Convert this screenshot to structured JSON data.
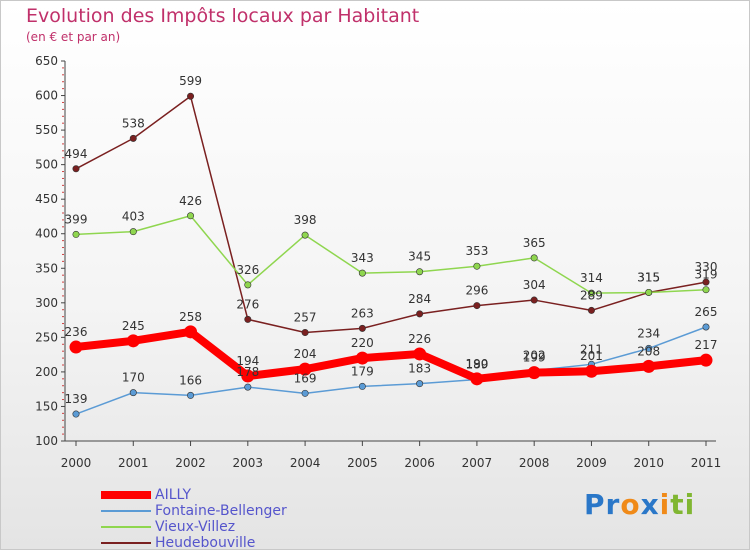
{
  "chart_data": {
    "type": "line",
    "title": "Evolution des Impôts locaux par Habitant",
    "subtitle": "(en € et par an)",
    "x": [
      "2000",
      "2001",
      "2002",
      "2003",
      "2004",
      "2005",
      "2006",
      "2007",
      "2008",
      "2009",
      "2010",
      "2011"
    ],
    "ylim": [
      100,
      650
    ],
    "yticks": [
      100,
      150,
      200,
      250,
      300,
      350,
      400,
      450,
      500,
      550,
      600,
      650
    ],
    "grid": false,
    "legend_position": "bottom-left",
    "series": [
      {
        "name": "AILLY",
        "color": "#ff0000",
        "values": [
          236,
          245,
          258,
          194,
          204,
          220,
          226,
          190,
          199,
          201,
          208,
          217
        ]
      },
      {
        "name": "Fontaine-Bellenger",
        "color": "#5b9bd5",
        "values": [
          139,
          170,
          166,
          178,
          169,
          179,
          183,
          189,
          202,
          211,
          234,
          265
        ]
      },
      {
        "name": "Vieux-Villez",
        "color": "#8fd64f",
        "values": [
          399,
          403,
          426,
          326,
          398,
          343,
          345,
          353,
          365,
          314,
          315,
          319
        ]
      },
      {
        "name": "Heudebouville",
        "color": "#7a2020",
        "values": [
          494,
          538,
          599,
          276,
          257,
          263,
          284,
          296,
          304,
          289,
          315,
          330
        ]
      }
    ]
  },
  "branding": {
    "logo_parts": [
      "Pr",
      "o",
      "x",
      "i",
      "ti"
    ]
  }
}
